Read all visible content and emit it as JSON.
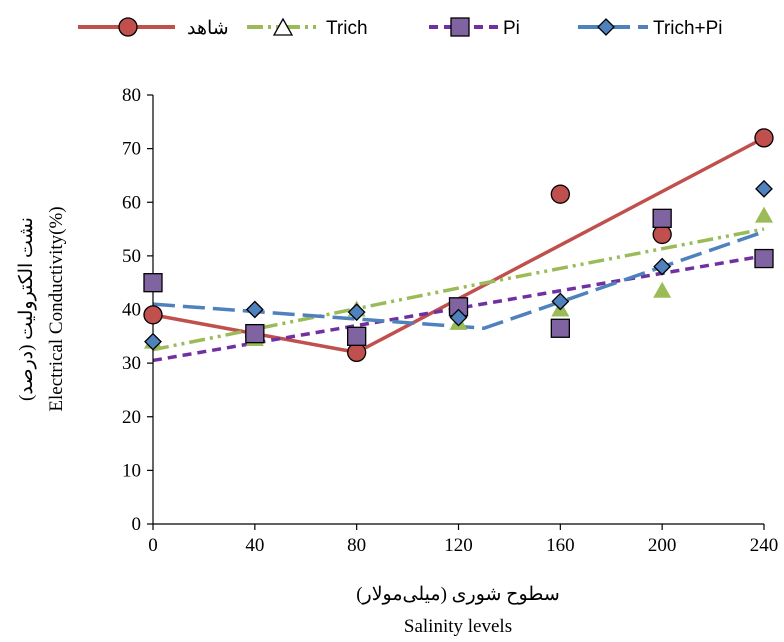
{
  "chart_data": {
    "type": "scatter",
    "x": [
      0,
      40,
      80,
      120,
      160,
      200,
      240
    ],
    "xlim": [
      0,
      240
    ],
    "ylim": [
      0,
      80
    ],
    "x_ticks": [
      "0",
      "40",
      "80",
      "120",
      "160",
      "200",
      "240"
    ],
    "y_ticks": [
      "0",
      "10",
      "20",
      "30",
      "40",
      "50",
      "60",
      "70",
      "80"
    ],
    "xlabel_fa": "سطوح شوری (میلی‌مولار)",
    "xlabel_en": "Salinity levels",
    "ylabel_fa": "نشت الکترولیت (درصد)",
    "ylabel_en": "Electrical Conductivity(%)",
    "grid": false,
    "legend_position": "top",
    "series": [
      {
        "name": "شاهد",
        "color": "#c0504d",
        "marker": "circle",
        "marker_fill": "#c0504d",
        "values": [
          39,
          35,
          32,
          39.5,
          61.5,
          54,
          72
        ],
        "trend": "linear-piecewise",
        "trend_style": "solid",
        "trend_points": [
          [
            0,
            39
          ],
          [
            80,
            32
          ],
          [
            240,
            72
          ]
        ]
      },
      {
        "name": "Trich",
        "color": "#9bbb59",
        "marker": "triangle",
        "marker_fill": "#9bbb59",
        "values": [
          34,
          34.5,
          40,
          37.5,
          40,
          43.5,
          57.5
        ],
        "trend_style": "dash-dot-dot",
        "trend_points": [
          [
            0,
            32.5
          ],
          [
            120,
            44
          ],
          [
            240,
            55
          ]
        ]
      },
      {
        "name": "Pi",
        "color": "#7030a0",
        "marker": "square",
        "marker_fill": "#8064a2",
        "values": [
          45,
          35.5,
          35,
          40.5,
          36.5,
          57,
          49.5
        ],
        "trend_style": "dash",
        "trend_points": [
          [
            0,
            30.5
          ],
          [
            240,
            50
          ]
        ]
      },
      {
        "name": "Trich+Pi",
        "color": "#4f81bd",
        "marker": "diamond",
        "marker_fill": "#4f81bd",
        "values": [
          34,
          40,
          39.5,
          38.5,
          41.5,
          48,
          62.5
        ],
        "trend_style": "long-dash",
        "trend_points": [
          [
            0,
            41
          ],
          [
            130,
            36.5
          ],
          [
            240,
            54.5
          ]
        ]
      }
    ]
  }
}
